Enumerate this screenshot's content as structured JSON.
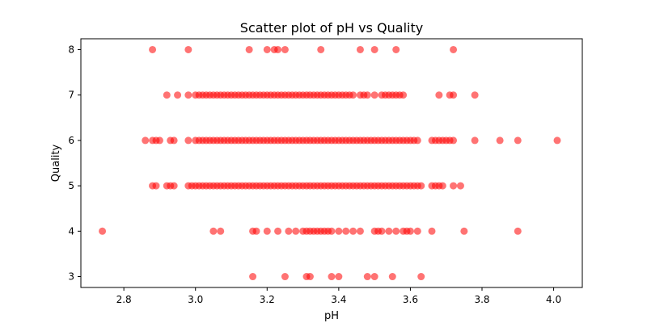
{
  "chart_data": {
    "type": "scatter",
    "title": "Scatter plot of pH vs Quality",
    "xlabel": "pH",
    "ylabel": "Quality",
    "xlim": [
      2.68,
      4.08
    ],
    "ylim": [
      2.76,
      8.24
    ],
    "xticks": [
      2.8,
      3.0,
      3.2,
      3.4,
      3.6,
      3.8,
      4.0
    ],
    "xtick_labels": [
      "2.8",
      "3.0",
      "3.2",
      "3.4",
      "3.6",
      "3.8",
      "4.0"
    ],
    "yticks": [
      3,
      4,
      5,
      6,
      7,
      8
    ],
    "ytick_labels": [
      "3",
      "4",
      "5",
      "6",
      "7",
      "8"
    ],
    "grid": false,
    "marker_color": "#ff0000",
    "marker_alpha": 0.55,
    "series": [
      {
        "x": [
          2.88,
          2.98,
          3.15,
          3.2,
          3.22,
          3.23,
          3.25,
          3.35,
          3.46,
          3.5,
          3.56,
          3.72
        ],
        "y": [
          8,
          8,
          8,
          8,
          8,
          8,
          8,
          8,
          8,
          8,
          8,
          8
        ]
      },
      {
        "x": [
          2.92,
          2.95,
          2.98,
          3.0,
          3.01,
          3.02,
          3.03,
          3.04,
          3.05,
          3.06,
          3.07,
          3.08,
          3.09,
          3.1,
          3.11,
          3.12,
          3.13,
          3.14,
          3.15,
          3.16,
          3.17,
          3.18,
          3.19,
          3.2,
          3.21,
          3.22,
          3.23,
          3.24,
          3.25,
          3.26,
          3.27,
          3.28,
          3.29,
          3.3,
          3.31,
          3.32,
          3.33,
          3.34,
          3.35,
          3.36,
          3.37,
          3.38,
          3.39,
          3.4,
          3.41,
          3.42,
          3.43,
          3.44,
          3.46,
          3.47,
          3.48,
          3.5,
          3.52,
          3.53,
          3.54,
          3.55,
          3.56,
          3.57,
          3.58,
          3.68,
          3.71,
          3.72,
          3.78
        ],
        "y": [
          7,
          7,
          7,
          7,
          7,
          7,
          7,
          7,
          7,
          7,
          7,
          7,
          7,
          7,
          7,
          7,
          7,
          7,
          7,
          7,
          7,
          7,
          7,
          7,
          7,
          7,
          7,
          7,
          7,
          7,
          7,
          7,
          7,
          7,
          7,
          7,
          7,
          7,
          7,
          7,
          7,
          7,
          7,
          7,
          7,
          7,
          7,
          7,
          7,
          7,
          7,
          7,
          7,
          7,
          7,
          7,
          7,
          7,
          7,
          7,
          7,
          7,
          7
        ]
      },
      {
        "x": [
          2.86,
          2.88,
          2.89,
          2.9,
          2.93,
          2.94,
          2.98,
          3.0,
          3.01,
          3.02,
          3.03,
          3.04,
          3.05,
          3.06,
          3.07,
          3.08,
          3.09,
          3.1,
          3.11,
          3.12,
          3.13,
          3.14,
          3.15,
          3.16,
          3.17,
          3.18,
          3.19,
          3.2,
          3.21,
          3.22,
          3.23,
          3.24,
          3.25,
          3.26,
          3.27,
          3.28,
          3.29,
          3.3,
          3.31,
          3.32,
          3.33,
          3.34,
          3.35,
          3.36,
          3.37,
          3.38,
          3.39,
          3.4,
          3.41,
          3.42,
          3.43,
          3.44,
          3.45,
          3.46,
          3.47,
          3.48,
          3.49,
          3.5,
          3.51,
          3.52,
          3.53,
          3.54,
          3.55,
          3.56,
          3.57,
          3.58,
          3.59,
          3.6,
          3.61,
          3.62,
          3.66,
          3.67,
          3.68,
          3.69,
          3.7,
          3.71,
          3.72,
          3.78,
          3.85,
          3.9,
          4.01
        ],
        "y": [
          6,
          6,
          6,
          6,
          6,
          6,
          6,
          6,
          6,
          6,
          6,
          6,
          6,
          6,
          6,
          6,
          6,
          6,
          6,
          6,
          6,
          6,
          6,
          6,
          6,
          6,
          6,
          6,
          6,
          6,
          6,
          6,
          6,
          6,
          6,
          6,
          6,
          6,
          6,
          6,
          6,
          6,
          6,
          6,
          6,
          6,
          6,
          6,
          6,
          6,
          6,
          6,
          6,
          6,
          6,
          6,
          6,
          6,
          6,
          6,
          6,
          6,
          6,
          6,
          6,
          6,
          6,
          6,
          6,
          6,
          6,
          6,
          6,
          6,
          6,
          6,
          6,
          6,
          6,
          6,
          6
        ]
      },
      {
        "x": [
          2.88,
          2.89,
          2.92,
          2.93,
          2.94,
          2.98,
          2.99,
          3.0,
          3.01,
          3.02,
          3.03,
          3.04,
          3.05,
          3.06,
          3.07,
          3.08,
          3.09,
          3.1,
          3.11,
          3.12,
          3.13,
          3.14,
          3.15,
          3.16,
          3.17,
          3.18,
          3.19,
          3.2,
          3.21,
          3.22,
          3.23,
          3.24,
          3.25,
          3.26,
          3.27,
          3.28,
          3.29,
          3.3,
          3.31,
          3.32,
          3.33,
          3.34,
          3.35,
          3.36,
          3.37,
          3.38,
          3.39,
          3.4,
          3.41,
          3.42,
          3.43,
          3.44,
          3.45,
          3.46,
          3.47,
          3.48,
          3.49,
          3.5,
          3.51,
          3.52,
          3.53,
          3.54,
          3.55,
          3.56,
          3.57,
          3.58,
          3.59,
          3.6,
          3.61,
          3.62,
          3.63,
          3.66,
          3.67,
          3.68,
          3.69,
          3.72,
          3.74
        ],
        "y": [
          5,
          5,
          5,
          5,
          5,
          5,
          5,
          5,
          5,
          5,
          5,
          5,
          5,
          5,
          5,
          5,
          5,
          5,
          5,
          5,
          5,
          5,
          5,
          5,
          5,
          5,
          5,
          5,
          5,
          5,
          5,
          5,
          5,
          5,
          5,
          5,
          5,
          5,
          5,
          5,
          5,
          5,
          5,
          5,
          5,
          5,
          5,
          5,
          5,
          5,
          5,
          5,
          5,
          5,
          5,
          5,
          5,
          5,
          5,
          5,
          5,
          5,
          5,
          5,
          5,
          5,
          5,
          5,
          5,
          5,
          5,
          5,
          5,
          5,
          5,
          5,
          5
        ]
      },
      {
        "x": [
          2.74,
          3.05,
          3.07,
          3.16,
          3.17,
          3.2,
          3.23,
          3.26,
          3.28,
          3.3,
          3.31,
          3.32,
          3.33,
          3.34,
          3.35,
          3.36,
          3.37,
          3.38,
          3.4,
          3.42,
          3.44,
          3.46,
          3.5,
          3.51,
          3.52,
          3.54,
          3.56,
          3.58,
          3.59,
          3.6,
          3.62,
          3.66,
          3.75,
          3.9
        ],
        "y": [
          4,
          4,
          4,
          4,
          4,
          4,
          4,
          4,
          4,
          4,
          4,
          4,
          4,
          4,
          4,
          4,
          4,
          4,
          4,
          4,
          4,
          4,
          4,
          4,
          4,
          4,
          4,
          4,
          4,
          4,
          4,
          4,
          4,
          4
        ]
      },
      {
        "x": [
          3.16,
          3.25,
          3.31,
          3.32,
          3.38,
          3.4,
          3.48,
          3.5,
          3.55,
          3.63
        ],
        "y": [
          3,
          3,
          3,
          3,
          3,
          3,
          3,
          3,
          3,
          3
        ]
      }
    ]
  }
}
